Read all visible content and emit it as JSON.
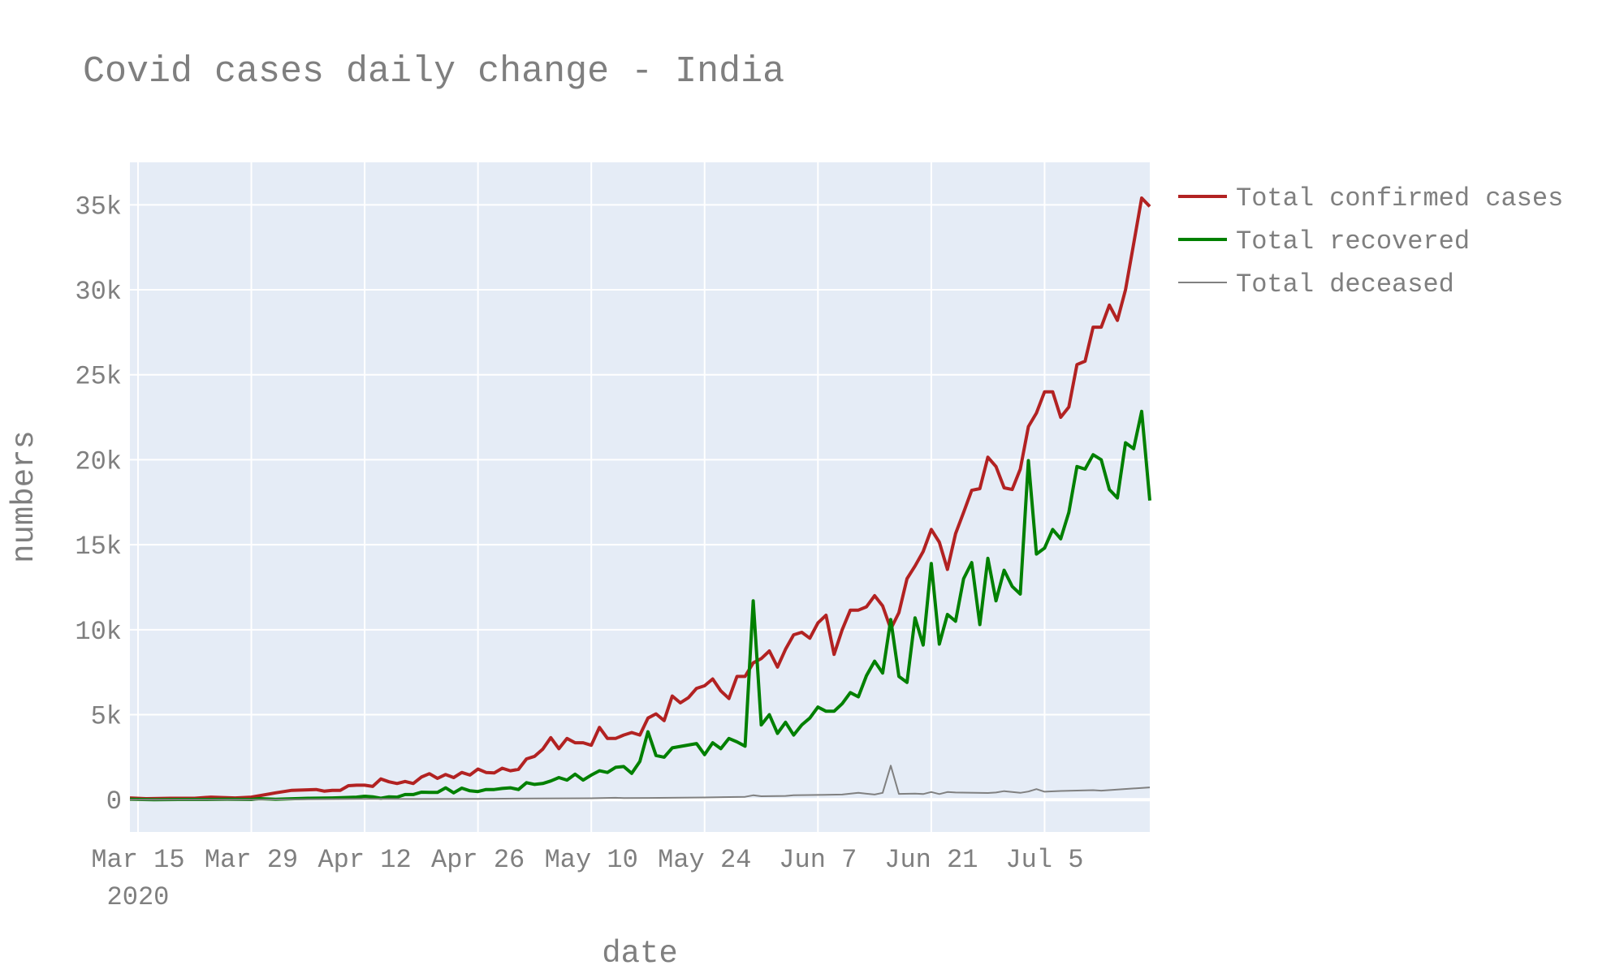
{
  "chart_data": {
    "type": "line",
    "title": "Covid cases daily change - India",
    "xlabel": "date",
    "ylabel": "numbers",
    "x_start": "2020-03-14",
    "x_end": "2020-07-18",
    "x_ticks": [
      {
        "date": "2020-03-15",
        "label": "Mar 15",
        "sublabel": "2020"
      },
      {
        "date": "2020-03-29",
        "label": "Mar 29",
        "sublabel": ""
      },
      {
        "date": "2020-04-12",
        "label": "Apr 12",
        "sublabel": ""
      },
      {
        "date": "2020-04-26",
        "label": "Apr 26",
        "sublabel": ""
      },
      {
        "date": "2020-05-10",
        "label": "May 10",
        "sublabel": ""
      },
      {
        "date": "2020-05-24",
        "label": "May 24",
        "sublabel": ""
      },
      {
        "date": "2020-06-07",
        "label": "Jun 7",
        "sublabel": ""
      },
      {
        "date": "2020-06-21",
        "label": "Jun 21",
        "sublabel": ""
      },
      {
        "date": "2020-07-05",
        "label": "Jul 5",
        "sublabel": ""
      }
    ],
    "y_ticks": [
      {
        "value": 0,
        "label": "0"
      },
      {
        "value": 5000,
        "label": "5k"
      },
      {
        "value": 10000,
        "label": "10k"
      },
      {
        "value": 15000,
        "label": "15k"
      },
      {
        "value": 20000,
        "label": "20k"
      },
      {
        "value": 25000,
        "label": "25k"
      },
      {
        "value": 30000,
        "label": "30k"
      },
      {
        "value": 35000,
        "label": "35k"
      }
    ],
    "ylim": [
      -1900,
      37500
    ],
    "grid": true,
    "legend_position": "top-right",
    "series": [
      {
        "name": "Total confirmed cases",
        "color": "#b22222",
        "points": [
          [
            "2020-03-14",
            100
          ],
          [
            "2020-03-16",
            60
          ],
          [
            "2020-03-19",
            80
          ],
          [
            "2020-03-22",
            80
          ],
          [
            "2020-03-24",
            150
          ],
          [
            "2020-03-27",
            100
          ],
          [
            "2020-03-29",
            150
          ],
          [
            "2020-04-01",
            400
          ],
          [
            "2020-04-03",
            550
          ],
          [
            "2020-04-06",
            600
          ],
          [
            "2020-04-07",
            500
          ],
          [
            "2020-04-08",
            550
          ],
          [
            "2020-04-09",
            550
          ],
          [
            "2020-04-10",
            820
          ],
          [
            "2020-04-11",
            850
          ],
          [
            "2020-04-12",
            850
          ],
          [
            "2020-04-13",
            780
          ],
          [
            "2020-04-14",
            1220
          ],
          [
            "2020-04-15",
            1050
          ],
          [
            "2020-04-16",
            950
          ],
          [
            "2020-04-17",
            1070
          ],
          [
            "2020-04-18",
            950
          ],
          [
            "2020-04-19",
            1330
          ],
          [
            "2020-04-20",
            1530
          ],
          [
            "2020-04-21",
            1250
          ],
          [
            "2020-04-22",
            1480
          ],
          [
            "2020-04-23",
            1300
          ],
          [
            "2020-04-24",
            1600
          ],
          [
            "2020-04-25",
            1450
          ],
          [
            "2020-04-26",
            1800
          ],
          [
            "2020-04-27",
            1600
          ],
          [
            "2020-04-28",
            1570
          ],
          [
            "2020-04-29",
            1850
          ],
          [
            "2020-04-30",
            1700
          ],
          [
            "2020-05-01",
            1780
          ],
          [
            "2020-05-02",
            2400
          ],
          [
            "2020-05-03",
            2550
          ],
          [
            "2020-05-04",
            2970
          ],
          [
            "2020-05-05",
            3650
          ],
          [
            "2020-05-06",
            3000
          ],
          [
            "2020-05-07",
            3600
          ],
          [
            "2020-05-08",
            3350
          ],
          [
            "2020-05-09",
            3350
          ],
          [
            "2020-05-10",
            3200
          ],
          [
            "2020-05-11",
            4250
          ],
          [
            "2020-05-12",
            3600
          ],
          [
            "2020-05-13",
            3600
          ],
          [
            "2020-05-14",
            3800
          ],
          [
            "2020-05-15",
            3950
          ],
          [
            "2020-05-16",
            3800
          ],
          [
            "2020-05-17",
            4800
          ],
          [
            "2020-05-18",
            5050
          ],
          [
            "2020-05-19",
            4650
          ],
          [
            "2020-05-20",
            6100
          ],
          [
            "2020-05-21",
            5700
          ],
          [
            "2020-05-22",
            6000
          ],
          [
            "2020-05-23",
            6550
          ],
          [
            "2020-05-24",
            6700
          ],
          [
            "2020-05-25",
            7100
          ],
          [
            "2020-05-26",
            6400
          ],
          [
            "2020-05-27",
            5950
          ],
          [
            "2020-05-28",
            7250
          ],
          [
            "2020-05-29",
            7250
          ],
          [
            "2020-05-30",
            8050
          ],
          [
            "2020-05-31",
            8300
          ],
          [
            "2020-06-01",
            8750
          ],
          [
            "2020-06-02",
            7800
          ],
          [
            "2020-06-03",
            8850
          ],
          [
            "2020-06-04",
            9700
          ],
          [
            "2020-06-05",
            9850
          ],
          [
            "2020-06-06",
            9500
          ],
          [
            "2020-06-07",
            10400
          ],
          [
            "2020-06-08",
            10850
          ],
          [
            "2020-06-09",
            8550
          ],
          [
            "2020-06-10",
            10000
          ],
          [
            "2020-06-11",
            11150
          ],
          [
            "2020-06-12",
            11150
          ],
          [
            "2020-06-13",
            11350
          ],
          [
            "2020-06-14",
            12000
          ],
          [
            "2020-06-15",
            11400
          ],
          [
            "2020-06-16",
            10050
          ],
          [
            "2020-06-17",
            11000
          ],
          [
            "2020-06-18",
            13000
          ],
          [
            "2020-06-19",
            13750
          ],
          [
            "2020-06-20",
            14600
          ],
          [
            "2020-06-21",
            15900
          ],
          [
            "2020-06-22",
            15150
          ],
          [
            "2020-06-23",
            13550
          ],
          [
            "2020-06-24",
            15650
          ],
          [
            "2020-06-25",
            16900
          ],
          [
            "2020-06-26",
            18200
          ],
          [
            "2020-06-27",
            18300
          ],
          [
            "2020-06-28",
            20150
          ],
          [
            "2020-06-29",
            19600
          ],
          [
            "2020-06-30",
            18350
          ],
          [
            "2020-07-01",
            18250
          ],
          [
            "2020-07-02",
            19450
          ],
          [
            "2020-07-03",
            21950
          ],
          [
            "2020-07-04",
            22750
          ],
          [
            "2020-07-05",
            24000
          ],
          [
            "2020-07-06",
            24000
          ],
          [
            "2020-07-07",
            22500
          ],
          [
            "2020-07-08",
            23100
          ],
          [
            "2020-07-09",
            25600
          ],
          [
            "2020-07-10",
            25800
          ],
          [
            "2020-07-11",
            27800
          ],
          [
            "2020-07-12",
            27800
          ],
          [
            "2020-07-13",
            29100
          ],
          [
            "2020-07-14",
            28200
          ],
          [
            "2020-07-15",
            30000
          ],
          [
            "2020-07-16",
            32700
          ],
          [
            "2020-07-17",
            35400
          ],
          [
            "2020-07-18",
            34900
          ]
        ]
      },
      {
        "name": "Total recovered",
        "color": "#008000",
        "points": [
          [
            "2020-03-14",
            20
          ],
          [
            "2020-03-17",
            0
          ],
          [
            "2020-03-20",
            10
          ],
          [
            "2020-03-23",
            10
          ],
          [
            "2020-03-26",
            20
          ],
          [
            "2020-03-29",
            10
          ],
          [
            "2020-03-30",
            60
          ],
          [
            "2020-04-01",
            20
          ],
          [
            "2020-04-05",
            80
          ],
          [
            "2020-04-08",
            100
          ],
          [
            "2020-04-11",
            150
          ],
          [
            "2020-04-12",
            200
          ],
          [
            "2020-04-13",
            170
          ],
          [
            "2020-04-14",
            80
          ],
          [
            "2020-04-15",
            170
          ],
          [
            "2020-04-16",
            150
          ],
          [
            "2020-04-17",
            300
          ],
          [
            "2020-04-18",
            300
          ],
          [
            "2020-04-19",
            440
          ],
          [
            "2020-04-20",
            430
          ],
          [
            "2020-04-21",
            430
          ],
          [
            "2020-04-22",
            700
          ],
          [
            "2020-04-23",
            400
          ],
          [
            "2020-04-24",
            680
          ],
          [
            "2020-04-25",
            520
          ],
          [
            "2020-04-26",
            480
          ],
          [
            "2020-04-27",
            600
          ],
          [
            "2020-04-28",
            600
          ],
          [
            "2020-04-29",
            660
          ],
          [
            "2020-04-30",
            700
          ],
          [
            "2020-05-01",
            600
          ],
          [
            "2020-05-02",
            1000
          ],
          [
            "2020-05-03",
            900
          ],
          [
            "2020-05-04",
            950
          ],
          [
            "2020-05-05",
            1100
          ],
          [
            "2020-05-06",
            1300
          ],
          [
            "2020-05-07",
            1150
          ],
          [
            "2020-05-08",
            1500
          ],
          [
            "2020-05-09",
            1150
          ],
          [
            "2020-05-10",
            1450
          ],
          [
            "2020-05-11",
            1700
          ],
          [
            "2020-05-12",
            1600
          ],
          [
            "2020-05-13",
            1900
          ],
          [
            "2020-05-14",
            1950
          ],
          [
            "2020-05-15",
            1550
          ],
          [
            "2020-05-16",
            2250
          ],
          [
            "2020-05-17",
            4000
          ],
          [
            "2020-05-18",
            2600
          ],
          [
            "2020-05-19",
            2500
          ],
          [
            "2020-05-20",
            3050
          ],
          [
            "2020-05-23",
            3300
          ],
          [
            "2020-05-24",
            2650
          ],
          [
            "2020-05-25",
            3350
          ],
          [
            "2020-05-26",
            3000
          ],
          [
            "2020-05-27",
            3600
          ],
          [
            "2020-05-28",
            3400
          ],
          [
            "2020-05-29",
            3150
          ],
          [
            "2020-05-30",
            11700
          ],
          [
            "2020-05-31",
            4400
          ],
          [
            "2020-06-01",
            5000
          ],
          [
            "2020-06-02",
            3900
          ],
          [
            "2020-06-03",
            4550
          ],
          [
            "2020-06-04",
            3800
          ],
          [
            "2020-06-05",
            4400
          ],
          [
            "2020-06-06",
            4800
          ],
          [
            "2020-06-07",
            5450
          ],
          [
            "2020-06-08",
            5200
          ],
          [
            "2020-06-09",
            5200
          ],
          [
            "2020-06-10",
            5650
          ],
          [
            "2020-06-11",
            6300
          ],
          [
            "2020-06-12",
            6050
          ],
          [
            "2020-06-13",
            7300
          ],
          [
            "2020-06-14",
            8150
          ],
          [
            "2020-06-15",
            7450
          ],
          [
            "2020-06-16",
            10600
          ],
          [
            "2020-06-17",
            7250
          ],
          [
            "2020-06-18",
            6900
          ],
          [
            "2020-06-19",
            10700
          ],
          [
            "2020-06-20",
            9100
          ],
          [
            "2020-06-21",
            13900
          ],
          [
            "2020-06-22",
            9150
          ],
          [
            "2020-06-23",
            10900
          ],
          [
            "2020-06-24",
            10500
          ],
          [
            "2020-06-25",
            13000
          ],
          [
            "2020-06-26",
            13950
          ],
          [
            "2020-06-27",
            10300
          ],
          [
            "2020-06-28",
            14200
          ],
          [
            "2020-06-29",
            11700
          ],
          [
            "2020-06-30",
            13500
          ],
          [
            "2020-07-01",
            12550
          ],
          [
            "2020-07-02",
            12100
          ],
          [
            "2020-07-03",
            19950
          ],
          [
            "2020-07-04",
            14450
          ],
          [
            "2020-07-05",
            14800
          ],
          [
            "2020-07-06",
            15900
          ],
          [
            "2020-07-07",
            15350
          ],
          [
            "2020-07-08",
            16900
          ],
          [
            "2020-07-09",
            19600
          ],
          [
            "2020-07-10",
            19450
          ],
          [
            "2020-07-11",
            20300
          ],
          [
            "2020-07-12",
            20000
          ],
          [
            "2020-07-13",
            18250
          ],
          [
            "2020-07-14",
            17750
          ],
          [
            "2020-07-15",
            21000
          ],
          [
            "2020-07-16",
            20650
          ],
          [
            "2020-07-17",
            22850
          ],
          [
            "2020-07-18",
            17600
          ]
        ]
      },
      {
        "name": "Total deceased",
        "color": "#808080",
        "points": [
          [
            "2020-03-14",
            0
          ],
          [
            "2020-03-29",
            0
          ],
          [
            "2020-04-05",
            20
          ],
          [
            "2020-04-12",
            50
          ],
          [
            "2020-04-19",
            40
          ],
          [
            "2020-04-26",
            50
          ],
          [
            "2020-05-03",
            70
          ],
          [
            "2020-05-10",
            80
          ],
          [
            "2020-05-13",
            110
          ],
          [
            "2020-05-14",
            90
          ],
          [
            "2020-05-17",
            100
          ],
          [
            "2020-05-24",
            130
          ],
          [
            "2020-05-29",
            170
          ],
          [
            "2020-05-30",
            260
          ],
          [
            "2020-05-31",
            200
          ],
          [
            "2020-06-03",
            220
          ],
          [
            "2020-06-04",
            260
          ],
          [
            "2020-06-07",
            280
          ],
          [
            "2020-06-10",
            300
          ],
          [
            "2020-06-12",
            400
          ],
          [
            "2020-06-13",
            350
          ],
          [
            "2020-06-14",
            300
          ],
          [
            "2020-06-15",
            400
          ],
          [
            "2020-06-16",
            2000
          ],
          [
            "2020-06-17",
            340
          ],
          [
            "2020-06-19",
            360
          ],
          [
            "2020-06-20",
            330
          ],
          [
            "2020-06-21",
            450
          ],
          [
            "2020-06-22",
            330
          ],
          [
            "2020-06-23",
            450
          ],
          [
            "2020-06-24",
            420
          ],
          [
            "2020-06-28",
            390
          ],
          [
            "2020-06-29",
            420
          ],
          [
            "2020-06-30",
            500
          ],
          [
            "2020-07-01",
            450
          ],
          [
            "2020-07-02",
            400
          ],
          [
            "2020-07-03",
            480
          ],
          [
            "2020-07-04",
            620
          ],
          [
            "2020-07-05",
            470
          ],
          [
            "2020-07-07",
            510
          ],
          [
            "2020-07-11",
            560
          ],
          [
            "2020-07-12",
            530
          ],
          [
            "2020-07-14",
            600
          ],
          [
            "2020-07-18",
            720
          ]
        ]
      }
    ]
  }
}
